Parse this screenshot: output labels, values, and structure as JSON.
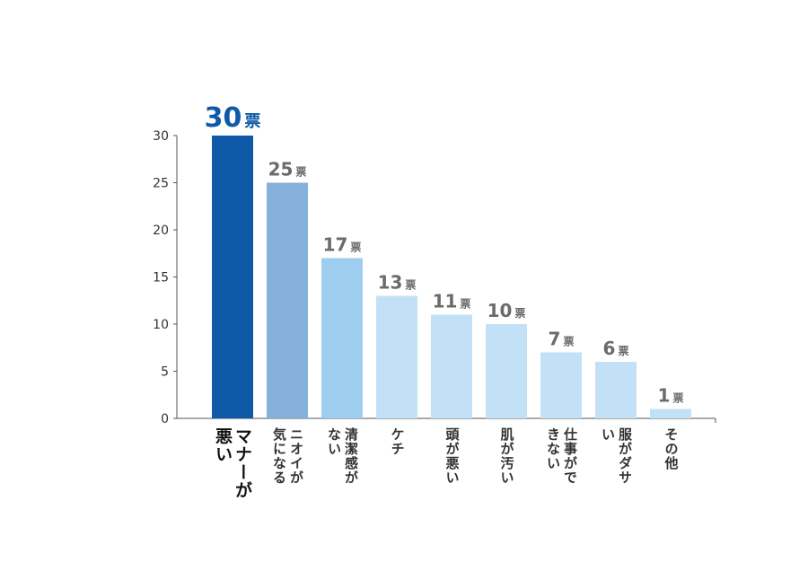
{
  "chart_data": {
    "type": "bar",
    "categories": [
      "マナーが悪い",
      "ニオイが気になる",
      "清潔感がない",
      "ケチ",
      "頭が悪い",
      "肌が汚い",
      "仕事ができない",
      "服がダサい",
      "その他"
    ],
    "values": [
      30,
      25,
      17,
      13,
      11,
      10,
      7,
      6,
      1
    ],
    "value_labels": [
      "30票",
      "25票",
      "17票",
      "13票",
      "11票",
      "10票",
      "7票",
      "6票",
      "1票"
    ],
    "colors": [
      "#0f5aa8",
      "#86b0dc",
      "#9fcdf0",
      "#c3e1f6",
      "#c3e1f6",
      "#c3e1f6",
      "#c3e1f6",
      "#c3e1f6",
      "#c3e1f6"
    ],
    "ylim": [
      0,
      30
    ],
    "yticks": [
      0,
      5,
      10,
      15,
      20,
      25,
      30
    ]
  }
}
